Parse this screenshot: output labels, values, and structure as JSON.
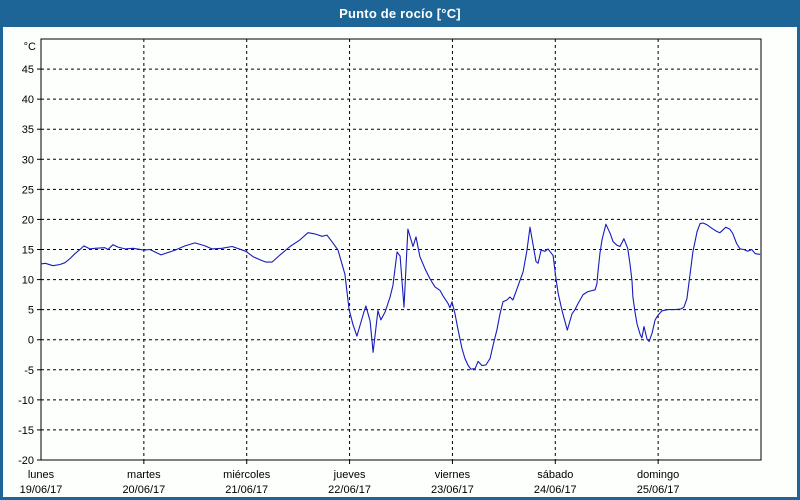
{
  "window": {
    "title": "Punto de rocío [°C]"
  },
  "colors": {
    "titlebar_bg": "#1d6596",
    "window_border": "#1d6596",
    "panel_bg": "#fdfffd",
    "series_line": "#1a1abe",
    "grid": "#000000",
    "axis": "#000000",
    "title_text": "#ffffff",
    "label_text": "#000000"
  },
  "chart_data": {
    "type": "line",
    "title": "Punto de rocío [°C]",
    "ylabel": "°C",
    "xlabel": "",
    "grid": "dashed",
    "legend": "none",
    "ylim": [
      -20,
      50
    ],
    "yticks": [
      -20,
      -15,
      -10,
      -5,
      0,
      5,
      10,
      15,
      20,
      25,
      30,
      35,
      40,
      45
    ],
    "xlim_hours": [
      0,
      168
    ],
    "day_ticks": [
      {
        "hour": 0,
        "label": "lunes",
        "date": "19/06/17"
      },
      {
        "hour": 24,
        "label": "martes",
        "date": "20/06/17"
      },
      {
        "hour": 48,
        "label": "miércoles",
        "date": "21/06/17"
      },
      {
        "hour": 72,
        "label": "jueves",
        "date": "22/06/17"
      },
      {
        "hour": 96,
        "label": "viernes",
        "date": "23/06/17"
      },
      {
        "hour": 120,
        "label": "sábado",
        "date": "24/06/17"
      },
      {
        "hour": 144,
        "label": "domingo",
        "date": "25/06/17"
      }
    ],
    "series": [
      {
        "name": "Punto de rocío",
        "color": "#1a1abe",
        "points": [
          [
            0,
            12.6
          ],
          [
            1,
            12.7
          ],
          [
            2.8,
            12.3
          ],
          [
            4.4,
            12.5
          ],
          [
            5.6,
            12.8
          ],
          [
            6.8,
            13.5
          ],
          [
            7.9,
            14.3
          ],
          [
            9.1,
            15.0
          ],
          [
            10,
            15.6
          ],
          [
            11.4,
            15.1
          ],
          [
            12.6,
            15.2
          ],
          [
            14.9,
            15.3
          ],
          [
            15.6,
            15.0
          ],
          [
            16.8,
            15.8
          ],
          [
            18,
            15.4
          ],
          [
            19.6,
            15.1
          ],
          [
            21.5,
            15.2
          ],
          [
            24,
            14.9
          ],
          [
            25.4,
            15.0
          ],
          [
            28,
            14.1
          ],
          [
            31.3,
            14.9
          ],
          [
            33.6,
            15.6
          ],
          [
            35.9,
            16.1
          ],
          [
            38.3,
            15.6
          ],
          [
            39.9,
            15.1
          ],
          [
            42.2,
            15.2
          ],
          [
            44.6,
            15.5
          ],
          [
            47.8,
            14.7
          ],
          [
            49.5,
            13.8
          ],
          [
            51.1,
            13.3
          ],
          [
            52.5,
            12.9
          ],
          [
            53.9,
            12.9
          ],
          [
            55.8,
            14.1
          ],
          [
            58.1,
            15.5
          ],
          [
            60.4,
            16.6
          ],
          [
            62.3,
            17.8
          ],
          [
            63.9,
            17.6
          ],
          [
            65.6,
            17.2
          ],
          [
            66.7,
            17.4
          ],
          [
            68.1,
            16.1
          ],
          [
            69.3,
            14.9
          ],
          [
            70.9,
            10.9
          ],
          [
            71.9,
            5.0
          ],
          [
            72.8,
            2.5
          ],
          [
            73.7,
            0.6
          ],
          [
            75.4,
            4.7
          ],
          [
            75.8,
            5.6
          ],
          [
            76.8,
            3.1
          ],
          [
            77.5,
            -2.1
          ],
          [
            78.6,
            4.8
          ],
          [
            79.3,
            3.3
          ],
          [
            80.3,
            4.6
          ],
          [
            81.4,
            7.0
          ],
          [
            82.1,
            9.0
          ],
          [
            83.1,
            14.6
          ],
          [
            83.8,
            13.9
          ],
          [
            84.7,
            5.4
          ],
          [
            85.6,
            18.4
          ],
          [
            86.8,
            15.5
          ],
          [
            87.5,
            17.1
          ],
          [
            88.4,
            13.8
          ],
          [
            89.6,
            11.8
          ],
          [
            90.8,
            10.1
          ],
          [
            91.9,
            8.8
          ],
          [
            93.1,
            8.2
          ],
          [
            93.8,
            7.3
          ],
          [
            95,
            6.0
          ],
          [
            95.4,
            5.3
          ],
          [
            95.9,
            6.3
          ],
          [
            96.6,
            4.3
          ],
          [
            97.3,
            1.7
          ],
          [
            98.2,
            -1.4
          ],
          [
            98.9,
            -3.1
          ],
          [
            99.6,
            -4.2
          ],
          [
            100.3,
            -4.9
          ],
          [
            101.3,
            -4.8
          ],
          [
            102,
            -3.6
          ],
          [
            102.9,
            -4.3
          ],
          [
            103.8,
            -4.2
          ],
          [
            104.8,
            -3.1
          ],
          [
            105.5,
            -0.9
          ],
          [
            106.4,
            1.7
          ],
          [
            107.1,
            4.3
          ],
          [
            107.8,
            6.3
          ],
          [
            108.7,
            6.6
          ],
          [
            109.4,
            7.1
          ],
          [
            110.1,
            6.6
          ],
          [
            111.1,
            8.5
          ],
          [
            112.5,
            11.3
          ],
          [
            113.4,
            14.9
          ],
          [
            114.1,
            18.7
          ],
          [
            115.5,
            13.0
          ],
          [
            116,
            12.7
          ],
          [
            116.7,
            14.9
          ],
          [
            117.6,
            14.7
          ],
          [
            118.3,
            15.1
          ],
          [
            119.5,
            14.0
          ],
          [
            120.2,
            10.0
          ],
          [
            120.7,
            7.6
          ],
          [
            121.6,
            4.8
          ],
          [
            122.8,
            1.6
          ],
          [
            123.9,
            4.3
          ],
          [
            124.6,
            5.0
          ],
          [
            125.3,
            6.0
          ],
          [
            126.5,
            7.5
          ],
          [
            127.6,
            8.0
          ],
          [
            129.3,
            8.3
          ],
          [
            129.7,
            9.3
          ],
          [
            130,
            11.5
          ],
          [
            130.4,
            14.3
          ],
          [
            130.9,
            16.6
          ],
          [
            131.8,
            19.2
          ],
          [
            132.8,
            17.7
          ],
          [
            133.5,
            16.3
          ],
          [
            134.4,
            15.7
          ],
          [
            135.1,
            15.5
          ],
          [
            136,
            16.8
          ],
          [
            136.9,
            15.2
          ],
          [
            137.4,
            12.7
          ],
          [
            137.9,
            9.8
          ],
          [
            138.1,
            7.1
          ],
          [
            138.6,
            4.6
          ],
          [
            139.1,
            2.6
          ],
          [
            139.8,
            0.9
          ],
          [
            140.2,
            0.3
          ],
          [
            140.7,
            2.2
          ],
          [
            141.4,
            0.1
          ],
          [
            141.9,
            -0.3
          ],
          [
            142.6,
            1.1
          ],
          [
            143.3,
            3.3
          ],
          [
            144,
            4.1
          ],
          [
            144.9,
            4.8
          ],
          [
            146.3,
            5.0
          ],
          [
            147.9,
            5.0
          ],
          [
            149.3,
            5.1
          ],
          [
            150,
            5.4
          ],
          [
            150.7,
            6.8
          ],
          [
            151.4,
            10.7
          ],
          [
            152.1,
            14.6
          ],
          [
            153.1,
            18.0
          ],
          [
            153.8,
            19.3
          ],
          [
            154.5,
            19.4
          ],
          [
            155.4,
            19.1
          ],
          [
            156.6,
            18.5
          ],
          [
            157.7,
            18.0
          ],
          [
            158.4,
            17.8
          ],
          [
            159.8,
            18.7
          ],
          [
            160.7,
            18.4
          ],
          [
            161.4,
            17.7
          ],
          [
            162.3,
            16.0
          ],
          [
            163.1,
            15.1
          ],
          [
            164,
            15.0
          ],
          [
            164.9,
            14.7
          ],
          [
            165.8,
            15.0
          ],
          [
            166.7,
            14.3
          ],
          [
            167.7,
            14.2
          ]
        ]
      }
    ]
  }
}
